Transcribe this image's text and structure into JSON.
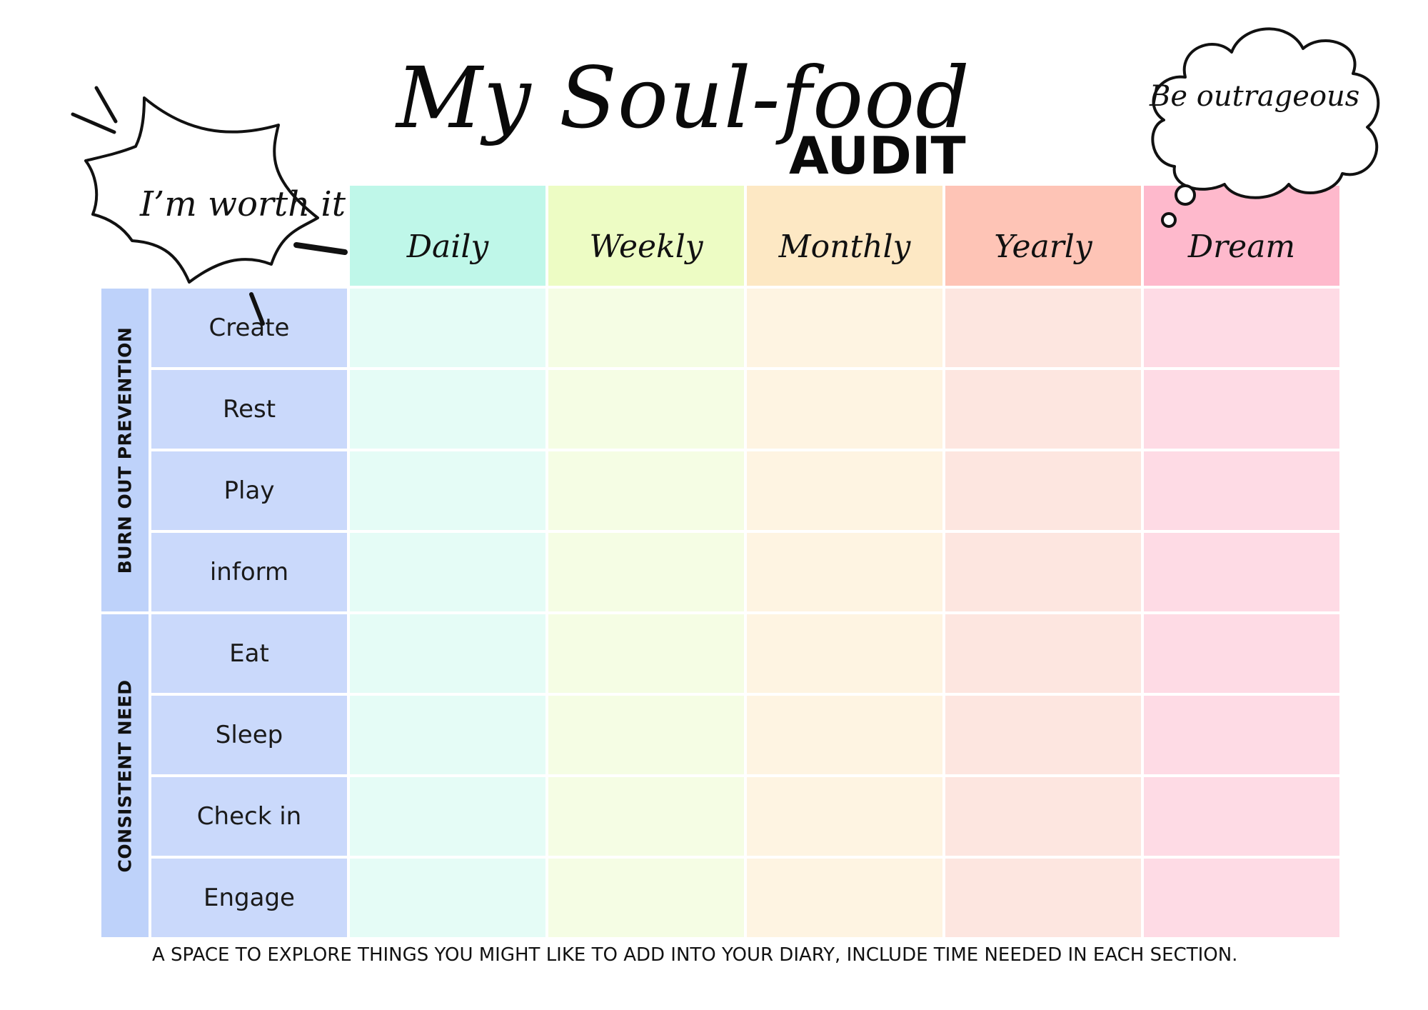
{
  "title": {
    "script": "My Soul-food",
    "audit": "AUDIT"
  },
  "bubbles": {
    "speech": "I’m worth it",
    "thought": "Be outrageous"
  },
  "columns": [
    {
      "label": "Daily",
      "header_color": "#bff7e9",
      "cell_color": "#e5fcf6"
    },
    {
      "label": "Weekly",
      "header_color": "#edfcc4",
      "cell_color": "#f5fde4"
    },
    {
      "label": "Monthly",
      "header_color": "#fde8c4",
      "cell_color": "#fef4e2"
    },
    {
      "label": "Yearly",
      "header_color": "#fec4b6",
      "cell_color": "#fde6e0"
    },
    {
      "label": "Dream",
      "header_color": "#feb9cc",
      "cell_color": "#fedbe5"
    }
  ],
  "groups": [
    {
      "label": "BURN OUT PREVENTION",
      "rows": [
        "Create",
        "Rest",
        "Play",
        "inform"
      ]
    },
    {
      "label": "CONSISTENT NEED",
      "rows": [
        "Eat",
        "Sleep",
        "Check in",
        "Engage"
      ]
    }
  ],
  "footer": "A SPACE TO EXPLORE THINGS YOU MIGHT LIKE TO ADD INTO YOUR DIARY, INCLUDE TIME NEEDED IN EACH SECTION.",
  "colors": {
    "row_label_bg": "#cad9fb",
    "group_bg": "#bed2fa"
  }
}
